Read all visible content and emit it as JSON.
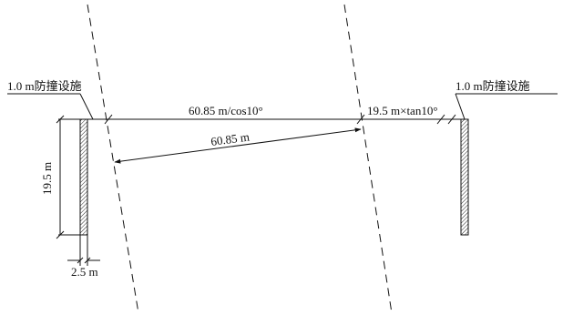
{
  "labels": {
    "barrier_left": "1.0 m防撞设施",
    "barrier_right": "1.0 m防撞设施",
    "span_oblique": "60.85 m/cos10°",
    "span_normal": "60.85 m",
    "offset": "19.5 m×tan10°",
    "height": "19.5 m",
    "width": "2.5 m"
  }
}
